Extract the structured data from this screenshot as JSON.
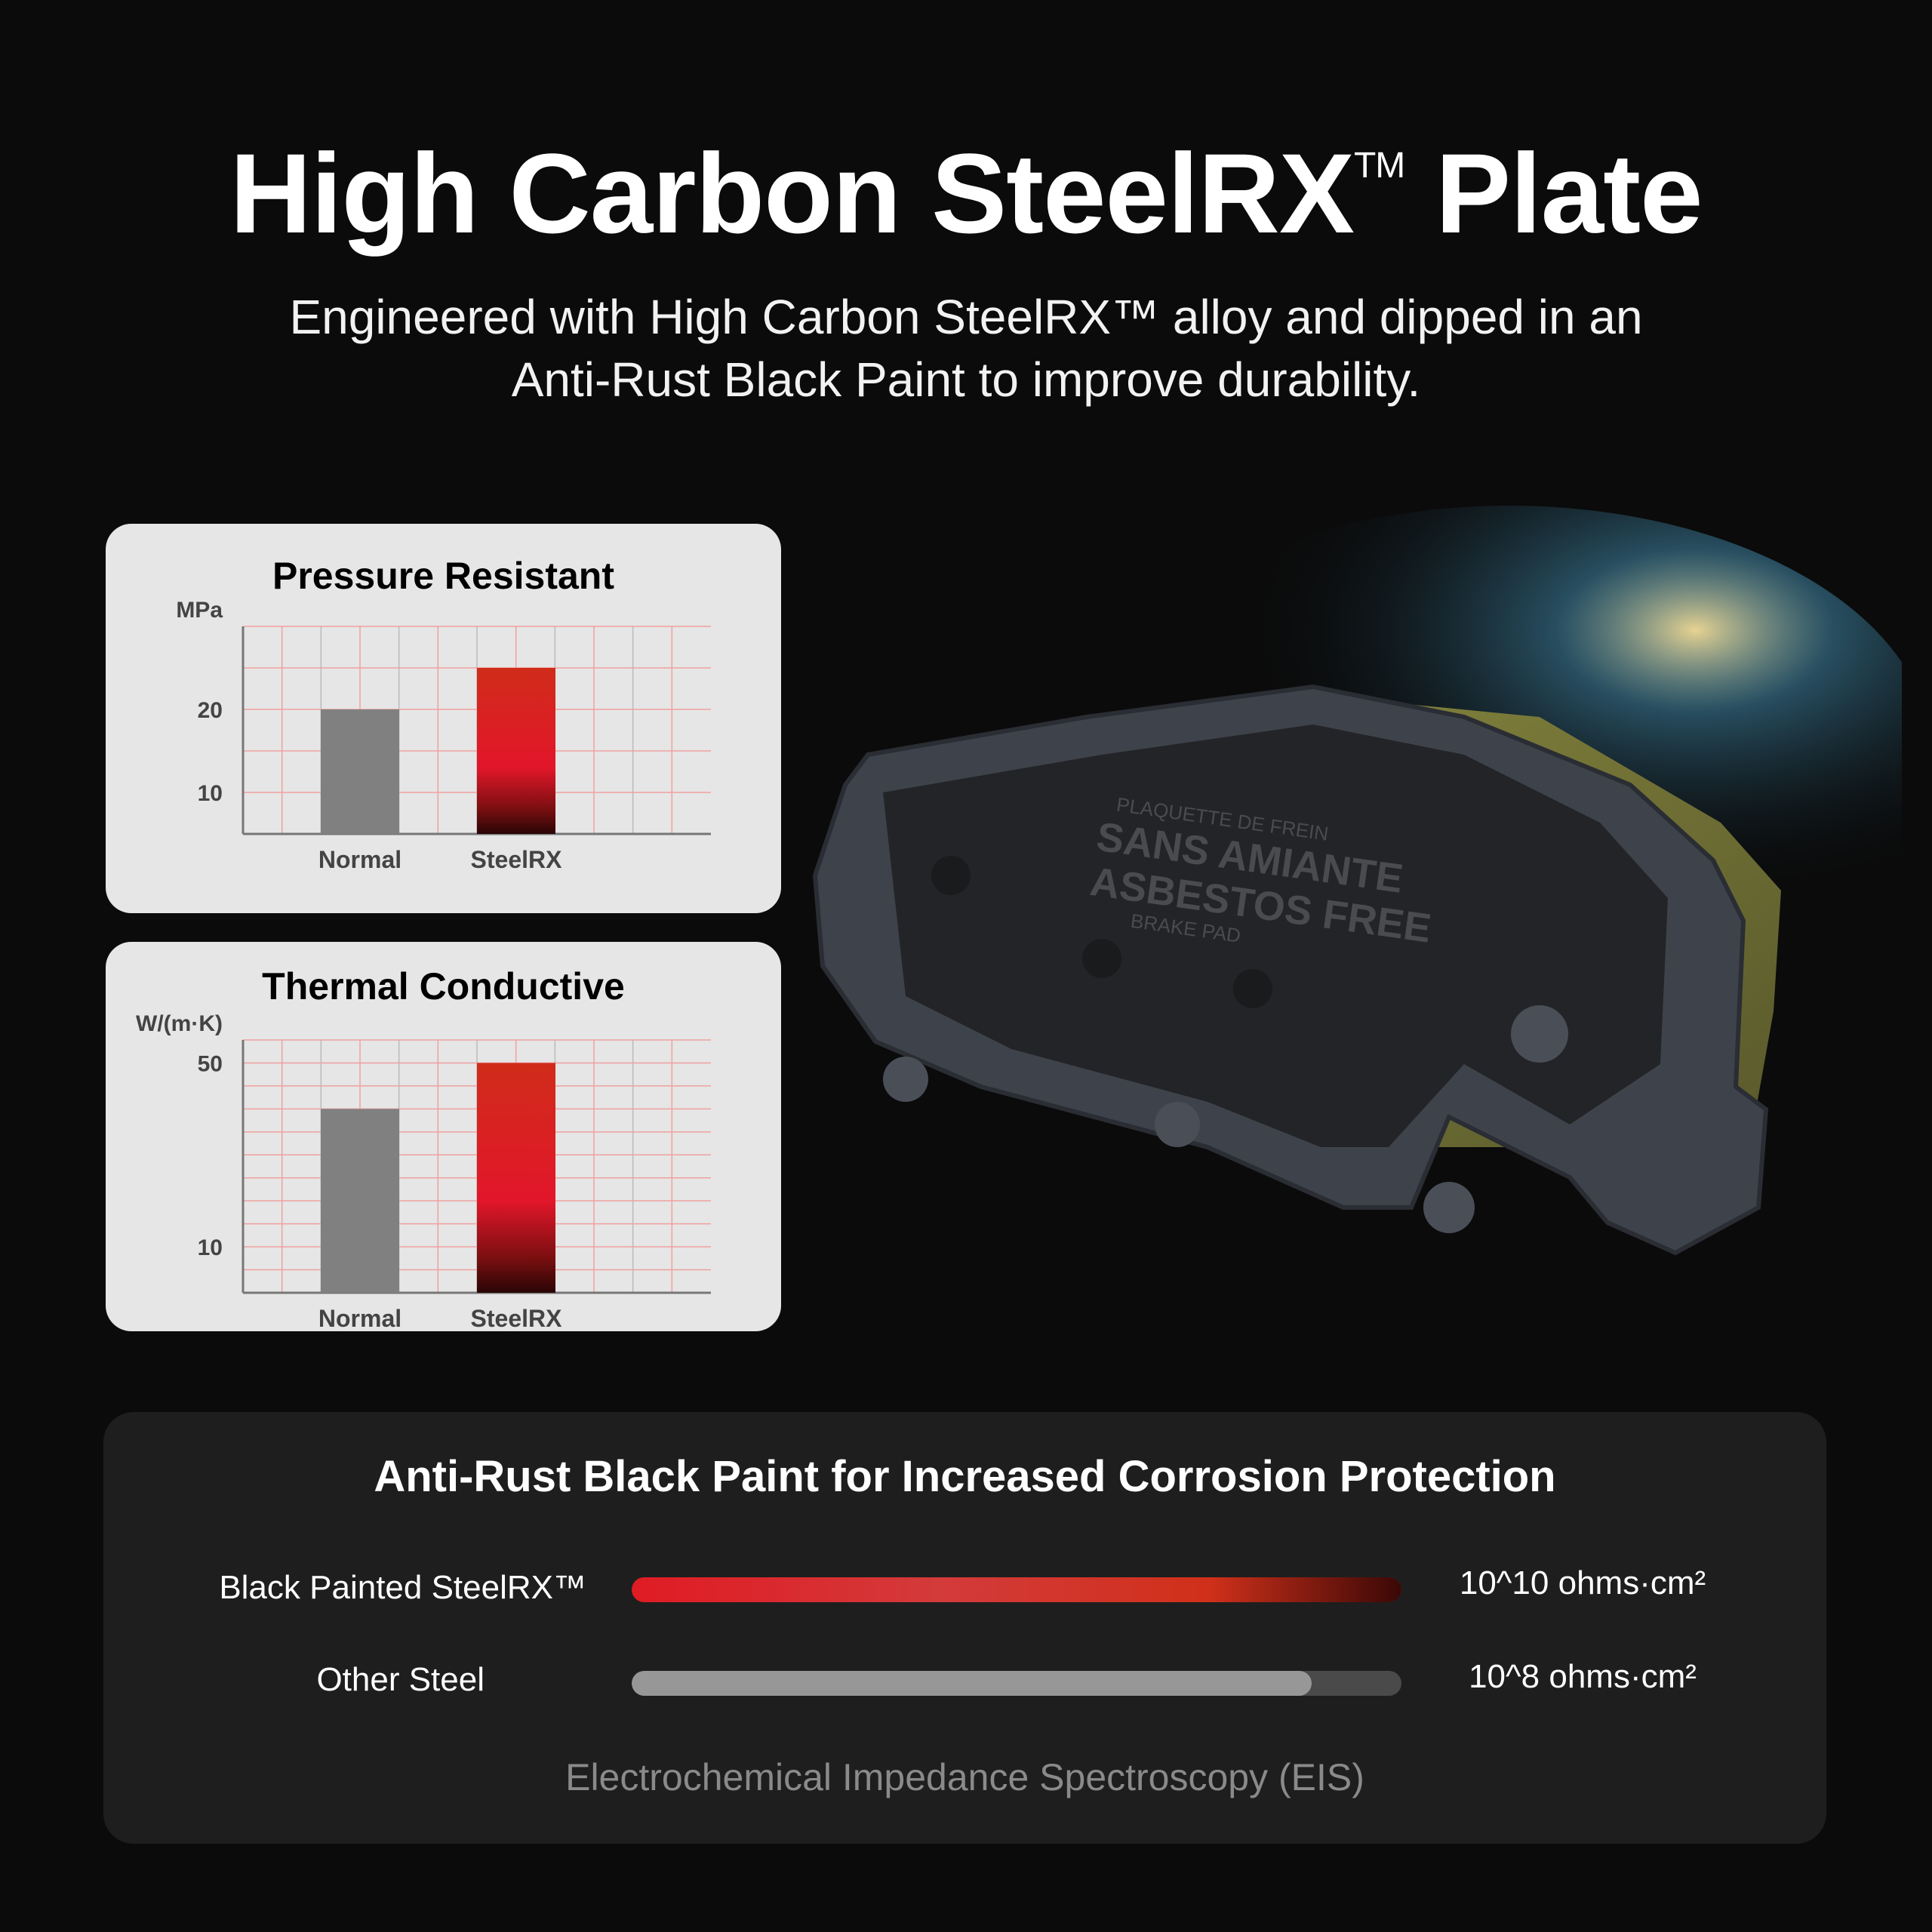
{
  "header": {
    "title_main": "High Carbon SteelRX",
    "title_tm": "TM",
    "title_end": "Plate",
    "subtitle_line1": "Engineered with High Carbon SteelRX™ alloy and dipped in an",
    "subtitle_line2": "Anti-Rust Black Paint to improve durability."
  },
  "product_image": {
    "pad_text": [
      "PLAQUETTE DE FREIN",
      "SANS AMIANTE",
      "ASBESTOS FREE",
      "BRAKE PAD"
    ]
  },
  "chart_data": [
    {
      "type": "bar",
      "title": "Pressure Resistant",
      "ylabel": "MPa",
      "categories": [
        "Normal",
        "SteelRX"
      ],
      "values": [
        20,
        25
      ],
      "ylim": [
        5,
        30
      ],
      "yticks": [
        10,
        20
      ],
      "grid": true,
      "colors": [
        "#808080",
        "#d42a1e"
      ]
    },
    {
      "type": "bar",
      "title": "Thermal Conductive",
      "ylabel": "W/(m·K)",
      "categories": [
        "Normal",
        "SteelRX"
      ],
      "values": [
        40,
        50
      ],
      "ylim": [
        0,
        55
      ],
      "yticks": [
        10,
        50
      ],
      "grid": true,
      "colors": [
        "#808080",
        "#d42a1e"
      ]
    }
  ],
  "corrosion": {
    "title": "Anti-Rust Black Paint for Increased Corrosion Protection",
    "rows": [
      {
        "label": "Black Painted SteelRX™",
        "value": "10^10 ohms·cm²",
        "fill": 1.0,
        "color": "#e01b24"
      },
      {
        "label": "Other Steel",
        "value": "10^8 ohms·cm²",
        "fill": 0.883,
        "color": "#979797"
      }
    ],
    "caption": "Electrochemical Impedance Spectroscopy (EIS)"
  }
}
